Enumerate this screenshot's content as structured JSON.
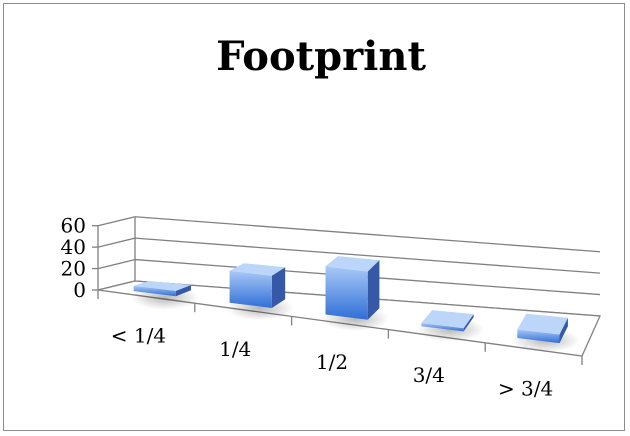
{
  "chart_data": {
    "type": "bar",
    "title": "Footprint",
    "categories": [
      "< 1/4",
      "1/4",
      "1/2",
      "3/4",
      "> 3/4"
    ],
    "values": [
      5,
      30,
      45,
      3,
      8
    ],
    "ylim": [
      0,
      60
    ],
    "yticks": [
      "0",
      "20",
      "40",
      "60"
    ],
    "grid": true,
    "style": "3d-column",
    "colors": {
      "bar_front_top": "#a9c8f7",
      "bar_front_bottom": "#2f6fd6",
      "bar_side": "#3559a6",
      "bar_top": "#bcd6fa",
      "gridline": "#808080"
    }
  }
}
